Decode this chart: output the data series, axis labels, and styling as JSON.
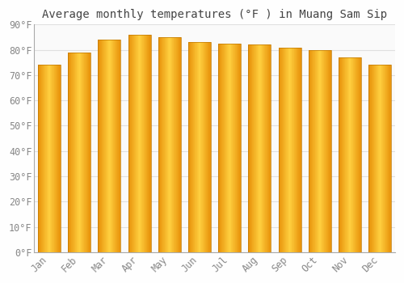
{
  "title": "Average monthly temperatures (°F ) in Muang Sam Sip",
  "months": [
    "Jan",
    "Feb",
    "Mar",
    "Apr",
    "May",
    "Jun",
    "Jul",
    "Aug",
    "Sep",
    "Oct",
    "Nov",
    "Dec"
  ],
  "values": [
    74,
    79,
    84,
    86,
    85,
    83,
    82.5,
    82,
    81,
    80,
    77,
    74
  ],
  "bar_color_left": "#E8920A",
  "bar_color_mid": "#FFD040",
  "bar_color_right": "#E8920A",
  "ylim": [
    0,
    90
  ],
  "yticks": [
    0,
    10,
    20,
    30,
    40,
    50,
    60,
    70,
    80,
    90
  ],
  "ytick_labels": [
    "0°F",
    "10°F",
    "20°F",
    "30°F",
    "40°F",
    "50°F",
    "60°F",
    "70°F",
    "80°F",
    "90°F"
  ],
  "background_color": "#FEFEFE",
  "plot_bg_color": "#FAFAFA",
  "grid_color": "#E0E0E0",
  "title_fontsize": 10,
  "tick_fontsize": 8.5,
  "font_family": "monospace",
  "bar_width": 0.75,
  "num_gradient_strips": 40,
  "bar_edge_color": "#C07800",
  "bar_edge_width": 0.5
}
